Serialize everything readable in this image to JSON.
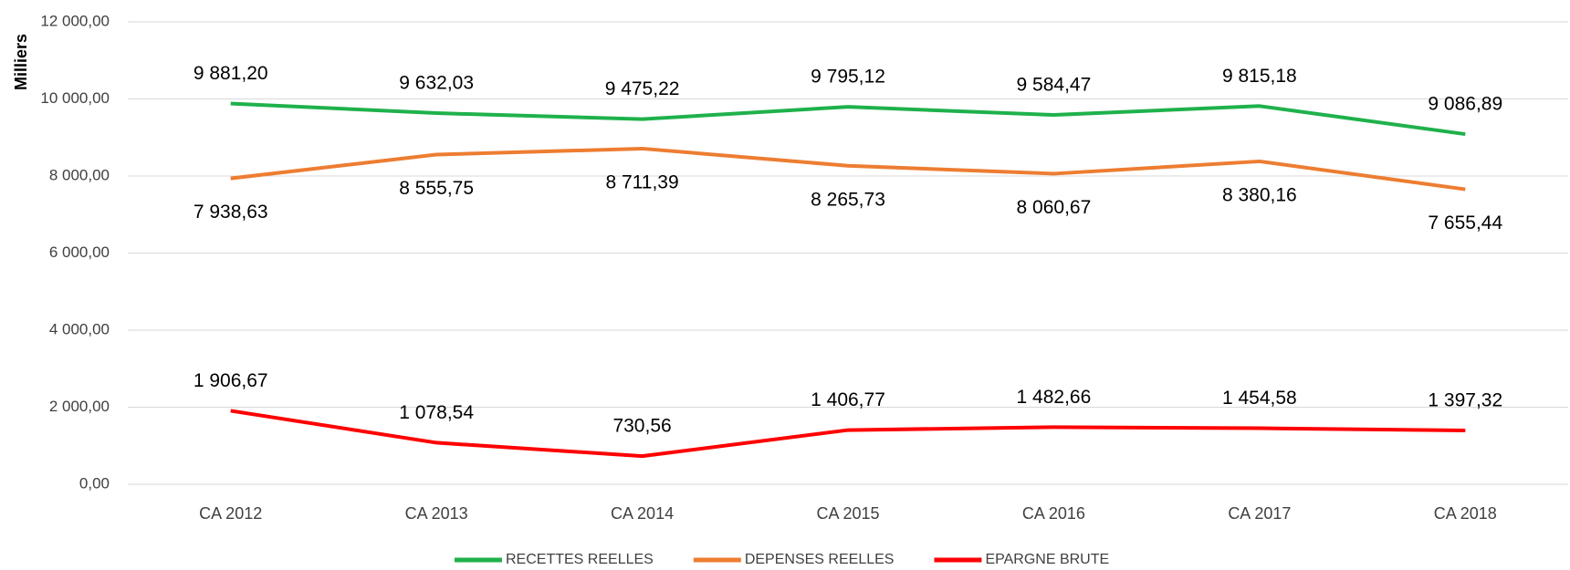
{
  "chart_data": {
    "type": "line",
    "y_label": "Milliers",
    "categories": [
      "CA 2012",
      "CA 2013",
      "CA 2014",
      "CA 2015",
      "CA 2016",
      "CA 2017",
      "CA 2018"
    ],
    "series": [
      {
        "name": "RECETTES REELLES",
        "color": "#1fb14c",
        "values": [
          9881.2,
          9632.03,
          9475.22,
          9795.12,
          9584.47,
          9815.18,
          9086.89
        ],
        "value_labels": [
          "9 881,20",
          "9 632,03",
          "9 475,22",
          "9 795,12",
          "9 584,47",
          "9 815,18",
          "9 086,89"
        ]
      },
      {
        "name": "DEPENSES REELLES",
        "color": "#ed7d31",
        "values": [
          7938.63,
          8555.75,
          8711.39,
          8265.73,
          8060.67,
          8380.16,
          7655.44
        ],
        "value_labels": [
          "7 938,63",
          "8 555,75",
          "8 711,39",
          "8 265,73",
          "8 060,67",
          "8 380,16",
          "7 655,44"
        ]
      },
      {
        "name": "EPARGNE BRUTE",
        "color": "#ff0000",
        "values": [
          1906.67,
          1078.54,
          730.56,
          1406.77,
          1482.66,
          1454.58,
          1397.32
        ],
        "value_labels": [
          "1 906,67",
          "1 078,54",
          "730,56",
          "1 406,77",
          "1 482,66",
          "1 454,58",
          "1 397,32"
        ]
      }
    ],
    "ylim": [
      0,
      12000
    ],
    "yticks": [
      {
        "value": 0,
        "label": "0,00"
      },
      {
        "value": 2000,
        "label": "2 000,00"
      },
      {
        "value": 4000,
        "label": "4 000,00"
      },
      {
        "value": 6000,
        "label": "6 000,00"
      },
      {
        "value": 8000,
        "label": "8 000,00"
      },
      {
        "value": 10000,
        "label": "10 000,00"
      },
      {
        "value": 12000,
        "label": "12 000,00"
      }
    ],
    "grid": true,
    "legend": "bottom"
  }
}
